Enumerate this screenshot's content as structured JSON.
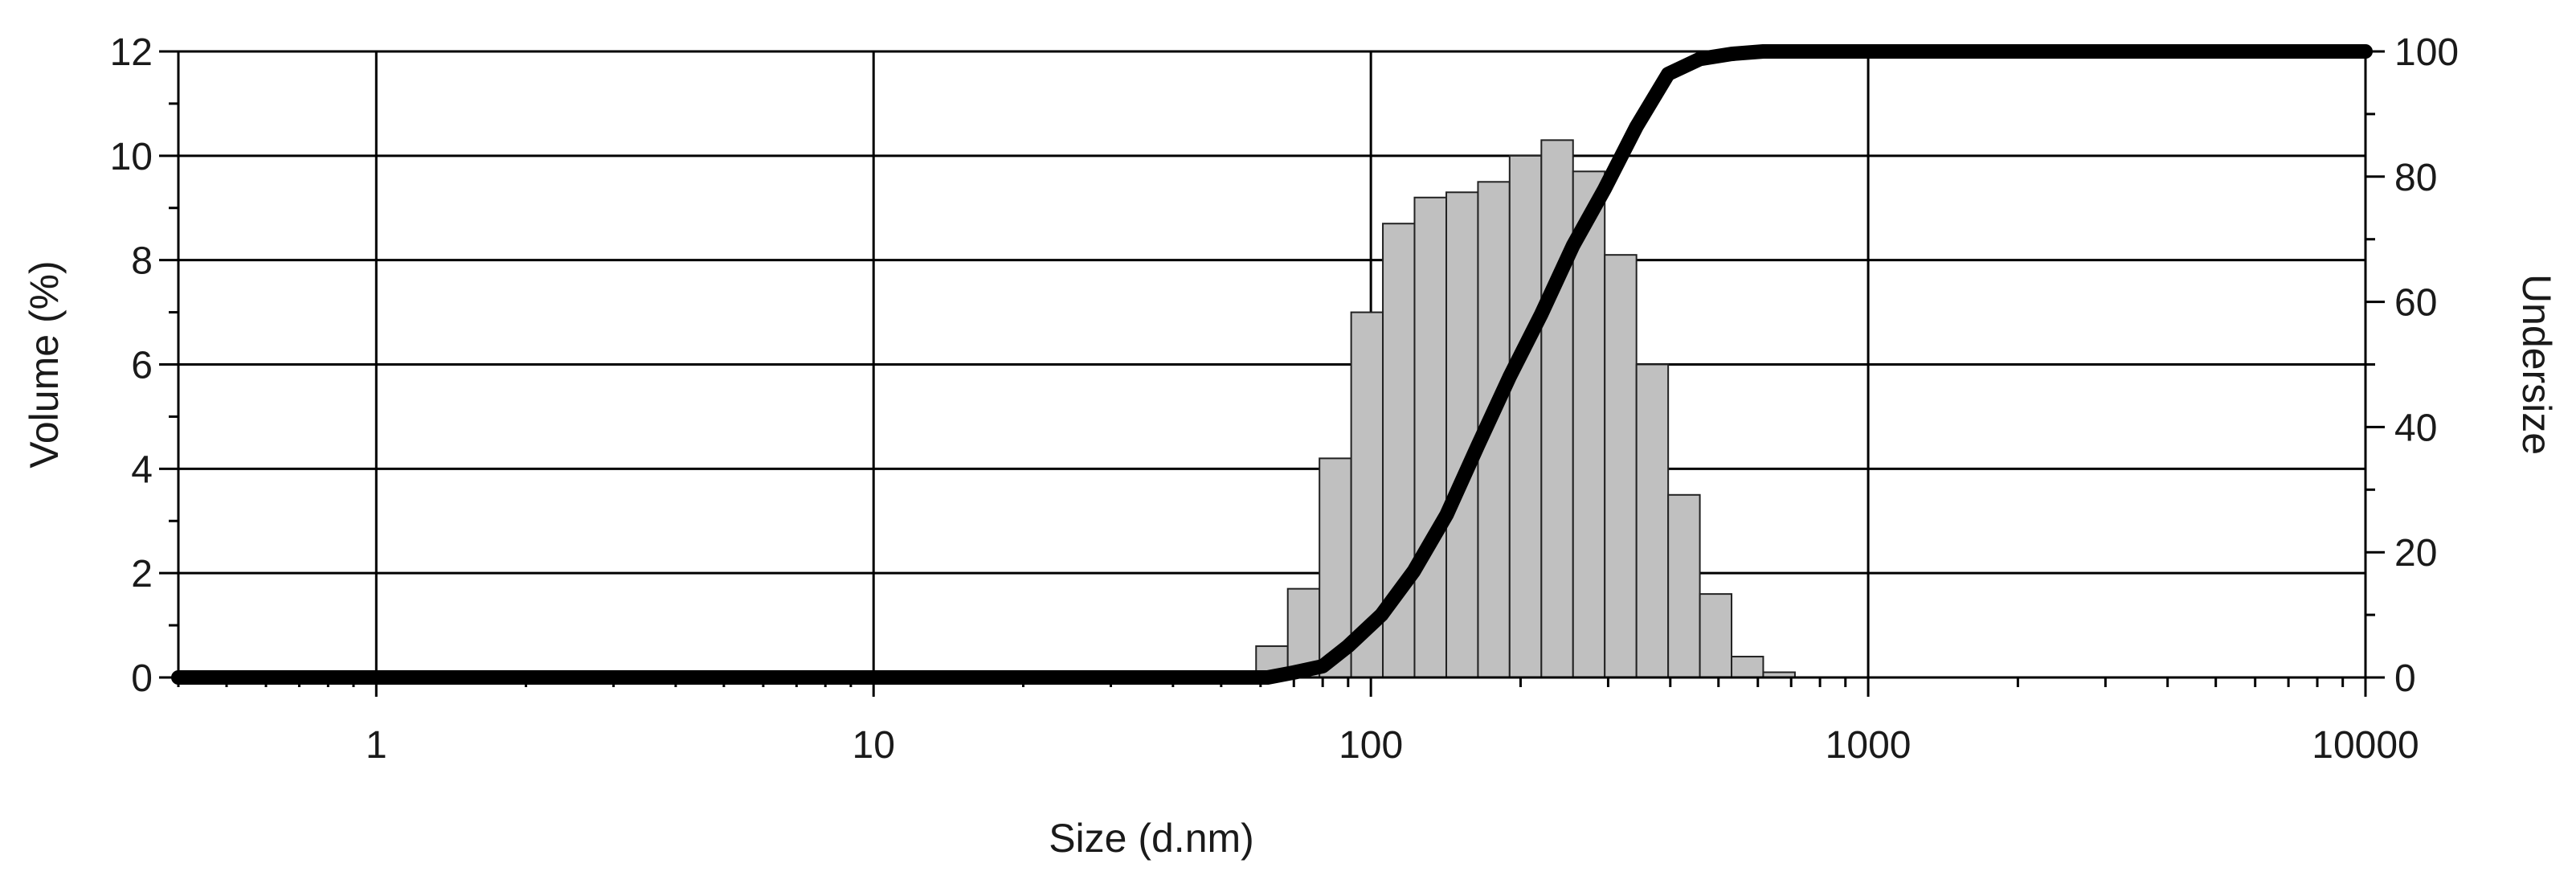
{
  "chart_data": {
    "type": "bar",
    "xlabel": "Size (d.nm)",
    "ylabel": "Volume (%)",
    "y2label": "Undersize",
    "x_scale": "log",
    "xlim": [
      0.4,
      10000
    ],
    "ylim": [
      0,
      12
    ],
    "y2lim": [
      0,
      100
    ],
    "x_tick_labels": [
      "1",
      "10",
      "100",
      "1000",
      "10000"
    ],
    "y_tick_labels": [
      "0",
      "2",
      "4",
      "6",
      "8",
      "10",
      "12"
    ],
    "y2_tick_labels": [
      "0",
      "20",
      "40",
      "60",
      "80",
      "100"
    ],
    "grid": true,
    "bar_color": "#c0c0c0",
    "line_color": "#000000",
    "histogram": {
      "bin_edges": [
        58.77,
        68.06,
        78.82,
        91.28,
        105.7,
        122.4,
        141.8,
        164.2,
        190.1,
        220.2,
        255.0,
        295.3,
        342.0,
        396.1,
        458.7,
        531.2,
        615.1,
        712.4
      ],
      "volume_percent": [
        0.6,
        1.7,
        4.2,
        7.0,
        8.7,
        9.2,
        9.3,
        9.5,
        10.0,
        10.3,
        9.7,
        8.1,
        6.0,
        3.5,
        1.6,
        0.4,
        0.1
      ]
    },
    "cumulative_series": {
      "name": "Undersize",
      "x": [
        0.4,
        62,
        70,
        80,
        90,
        105,
        122,
        142,
        164,
        190,
        220,
        255,
        295,
        342,
        396,
        459,
        531,
        615,
        650,
        10000
      ],
      "y": [
        0,
        0,
        0.8,
        1.8,
        5,
        10,
        17,
        26,
        37,
        48,
        58,
        69,
        78,
        88,
        96.4,
        98.8,
        99.6,
        100,
        100,
        100
      ]
    }
  }
}
